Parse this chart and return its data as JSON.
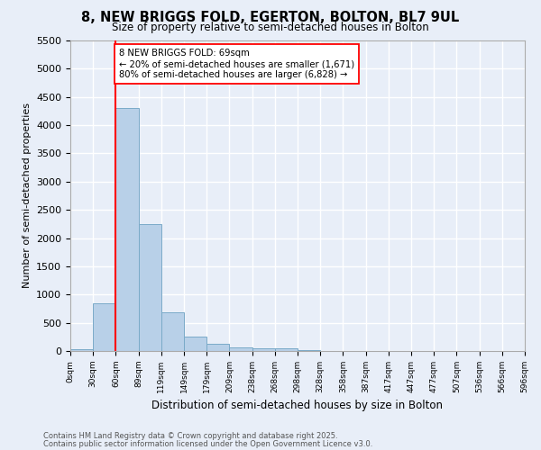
{
  "title": "8, NEW BRIGGS FOLD, EGERTON, BOLTON, BL7 9UL",
  "subtitle": "Size of property relative to semi-detached houses in Bolton",
  "xlabel": "Distribution of semi-detached houses by size in Bolton",
  "ylabel": "Number of semi-detached properties",
  "bar_values": [
    30,
    850,
    4300,
    2250,
    690,
    260,
    120,
    65,
    55,
    40,
    20,
    0,
    0,
    0,
    0,
    0,
    0,
    0,
    0,
    0
  ],
  "bin_labels": [
    "0sqm",
    "30sqm",
    "60sqm",
    "89sqm",
    "119sqm",
    "149sqm",
    "179sqm",
    "209sqm",
    "238sqm",
    "268sqm",
    "298sqm",
    "328sqm",
    "358sqm",
    "387sqm",
    "417sqm",
    "447sqm",
    "477sqm",
    "507sqm",
    "536sqm",
    "566sqm",
    "596sqm"
  ],
  "bar_color": "#B8D0E8",
  "bar_edge_color": "#7AAAC8",
  "ylim": [
    0,
    5500
  ],
  "yticks": [
    0,
    500,
    1000,
    1500,
    2000,
    2500,
    3000,
    3500,
    4000,
    4500,
    5000,
    5500
  ],
  "red_line_bin": 2,
  "annotation_title": "8 NEW BRIGGS FOLD: 69sqm",
  "annotation_line1": "← 20% of semi-detached houses are smaller (1,671)",
  "annotation_line2": "80% of semi-detached houses are larger (6,828) →",
  "footnote1": "Contains HM Land Registry data © Crown copyright and database right 2025.",
  "footnote2": "Contains public sector information licensed under the Open Government Licence v3.0.",
  "background_color": "#E8EEF8",
  "grid_color": "#FFFFFF"
}
